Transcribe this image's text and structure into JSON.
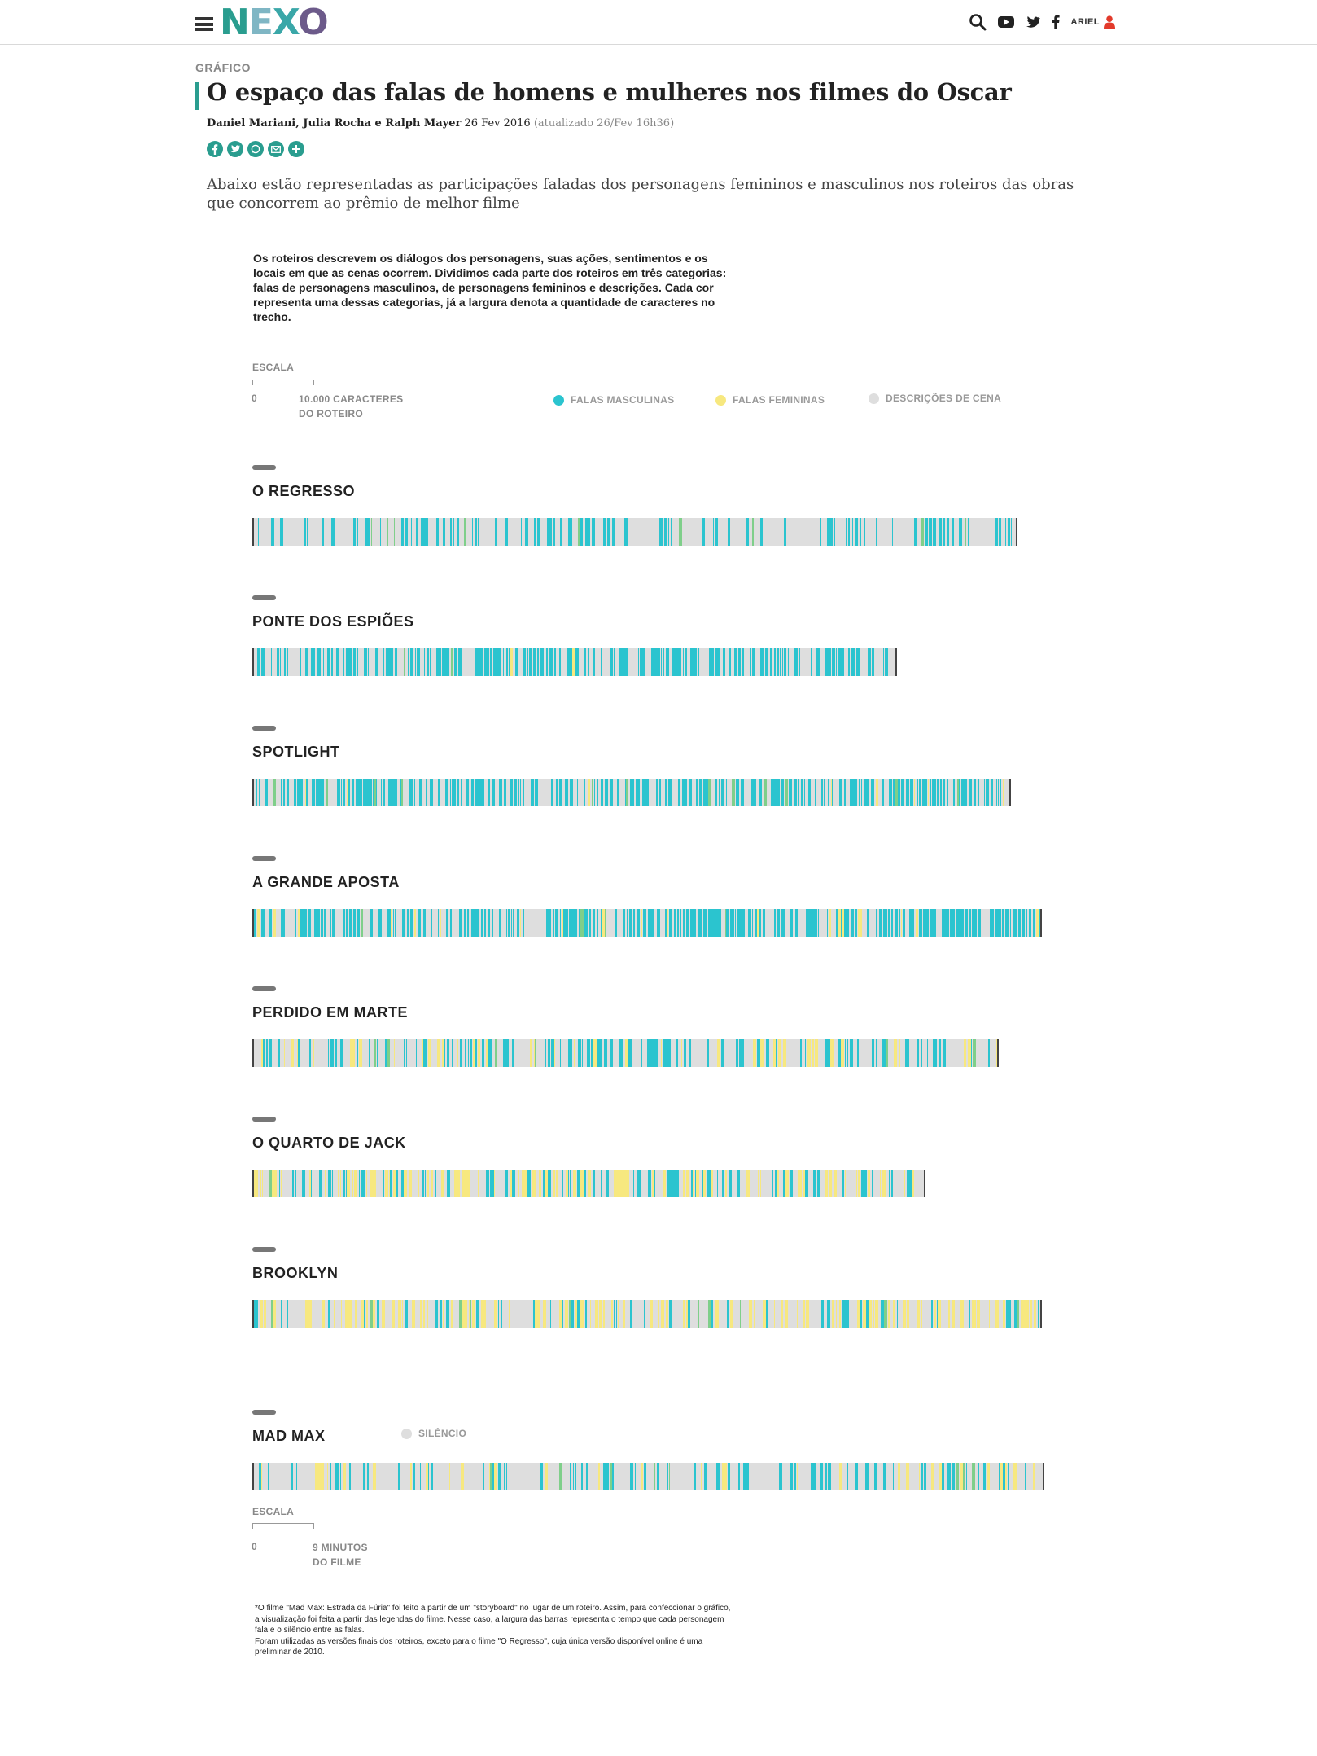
{
  "header": {
    "logo": [
      "N",
      "E",
      "X",
      "O"
    ],
    "user_label": "ARIEL",
    "icons": [
      "menu-icon",
      "search-icon",
      "youtube-icon",
      "twitter-icon",
      "facebook-icon",
      "user-icon"
    ]
  },
  "article": {
    "kicker": "GRÁFICO",
    "title": "O espaço das falas de homens e mulheres nos filmes do Oscar",
    "authors": "Daniel Mariani, Julia Rocha e Ralph Mayer",
    "date": "26 Fev 2016",
    "updated": "(atualizado 26/Fev 16h36)",
    "share_icons": [
      "facebook-icon",
      "twitter-icon",
      "whatsapp-icon",
      "email-icon",
      "plus-icon"
    ],
    "intro": "Abaixo estão representadas as participações faladas dos personagens femininos e masculinos nos roteiros das obras que concorrem ao prêmio de melhor filme"
  },
  "graphic": {
    "description": "Os roteiros descrevem os diálogos dos personagens, suas ações, sentimentos e os locais em que as cenas ocorrem. Dividimos cada parte dos roteiros em três categorias: falas de personagens masculinos, de personagens femininos e descrições. Cada cor representa uma dessas categorias, já a largura denota a quantidade de caracteres no trecho.",
    "scale_top": {
      "label": "ESCALA",
      "zero": "0",
      "value_line1": "10.000 CARACTERES",
      "value_line2": "DO ROTEIRO"
    },
    "legend": {
      "male": "FALAS MASCULINAS",
      "female": "FALAS FEMININAS",
      "description": "DESCRIÇÕES DE CENA",
      "silence": "SILÊNCIO"
    },
    "colors": {
      "male": "#2bc4cf",
      "female": "#f7e87f",
      "description": "#dedede",
      "green": "#7fcf8a",
      "end": "#444444"
    },
    "films": [
      {
        "name": "O REGRESSO",
        "length": 940,
        "male": 0.38,
        "female": 0.0
      },
      {
        "name": "PONTE DOS ESPIÕES",
        "length": 792,
        "male": 0.62,
        "female": 0.01
      },
      {
        "name": "SPOTLIGHT",
        "length": 932,
        "male": 0.6,
        "female": 0.05
      },
      {
        "name": "A GRANDE APOSTA",
        "length": 970,
        "male": 0.66,
        "female": 0.06
      },
      {
        "name": "PERDIDO EM MARTE",
        "length": 917,
        "male": 0.42,
        "female": 0.18
      },
      {
        "name": "O QUARTO DE JACK",
        "length": 827,
        "male": 0.28,
        "female": 0.35
      },
      {
        "name": "BROOKLYN",
        "length": 970,
        "male": 0.2,
        "female": 0.4
      },
      {
        "name": "MAD MAX",
        "length": 973,
        "male": 0.28,
        "female": 0.12
      }
    ],
    "scale_bottom": {
      "label": "ESCALA",
      "zero": "0",
      "value_line1": "9 MINUTOS",
      "value_line2": "DO FILME"
    },
    "footnote": [
      "*O filme \"Mad Max: Estrada da Fúria\" foi feito a partir de um \"storyboard\" no lugar de um roteiro. Assim, para confeccionar o gráfico, a visualização foi feita a partir das legendas do filme. Nesse caso, a largura das barras representa o tempo que cada personagem fala e o silêncio entre as falas.",
      "Foram utilizadas as versões finais dos roteiros, exceto para o filme \"O Regresso\", cuja única versão disponível online é uma preliminar de 2010."
    ]
  }
}
